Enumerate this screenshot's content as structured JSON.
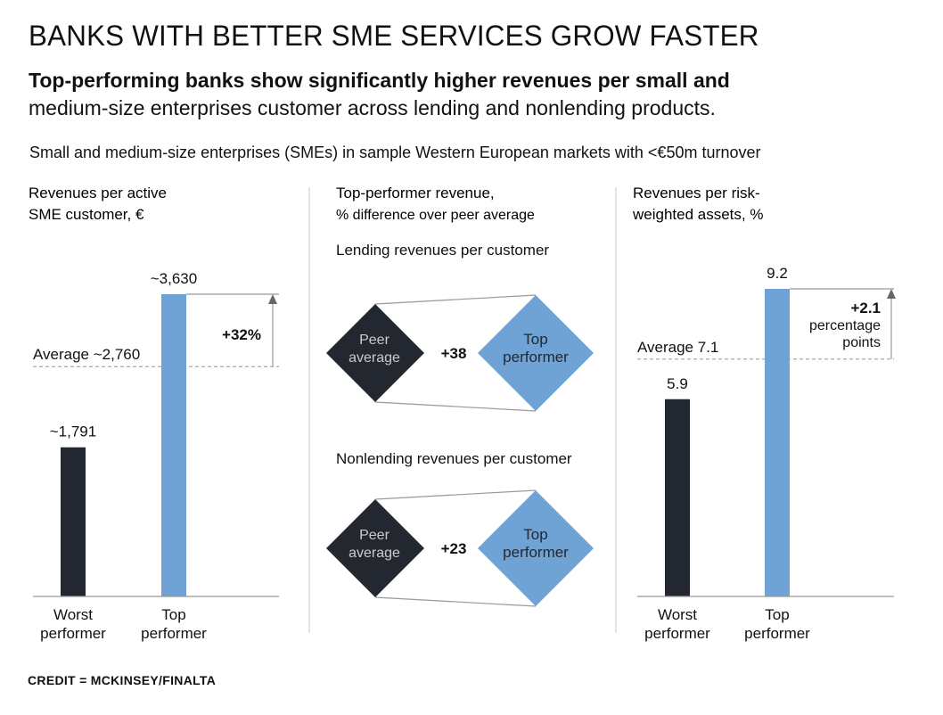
{
  "header": {
    "title": "BANKS WITH BETTER SME SERVICES GROW FASTER",
    "subtitle_bold": "Top-performing banks show significantly higher revenues per small and",
    "subtitle_regular": "medium-size enterprises customer across lending and nonlending products.",
    "note": "Small and medium-size enterprises (SMEs) in sample Western European markets with <€50m turnover"
  },
  "footer": {
    "credit": "CREDIT = MCKINSEY/FINALTA"
  },
  "colors": {
    "dark": "#232830",
    "blue": "#6fa3d6",
    "line": "#999999",
    "text": "#111111"
  },
  "chart_data": [
    {
      "type": "bar",
      "title_line1": "Revenues per active",
      "title_line2": "SME customer, €",
      "categories": [
        "Worst performer",
        "Top performer"
      ],
      "category_lines": [
        [
          "Worst",
          "performer"
        ],
        [
          "Top",
          "performer"
        ]
      ],
      "values": [
        1791,
        3630
      ],
      "value_labels": [
        "~1,791",
        "~3,630"
      ],
      "average": 2760,
      "average_label": "Average ~2,760",
      "delta_label": [
        "+32%"
      ],
      "ylim": [
        0,
        3630
      ]
    },
    {
      "type": "table",
      "title_line1": "Top-performer revenue,",
      "title_line2": "% difference over peer average",
      "comparisons": [
        {
          "label": "Lending revenues per customer",
          "from": [
            "Peer",
            "average"
          ],
          "to": [
            "Top",
            "performer"
          ],
          "difference": "+38",
          "value": 38
        },
        {
          "label": "Nonlending revenues per customer",
          "from": [
            "Peer",
            "average"
          ],
          "to": [
            "Top",
            "performer"
          ],
          "difference": "+23",
          "value": 23
        }
      ]
    },
    {
      "type": "bar",
      "title_line1": "Revenues per risk-",
      "title_line2": "weighted assets, %",
      "categories": [
        "Worst performer",
        "Top performer"
      ],
      "category_lines": [
        [
          "Worst",
          "performer"
        ],
        [
          "Top",
          "performer"
        ]
      ],
      "values": [
        5.9,
        9.2
      ],
      "value_labels": [
        "5.9",
        "9.2"
      ],
      "average": 7.1,
      "average_label": "Average 7.1",
      "delta_label": [
        "+2.1",
        "percentage",
        "points"
      ],
      "ylim": [
        0,
        9.2
      ]
    }
  ]
}
